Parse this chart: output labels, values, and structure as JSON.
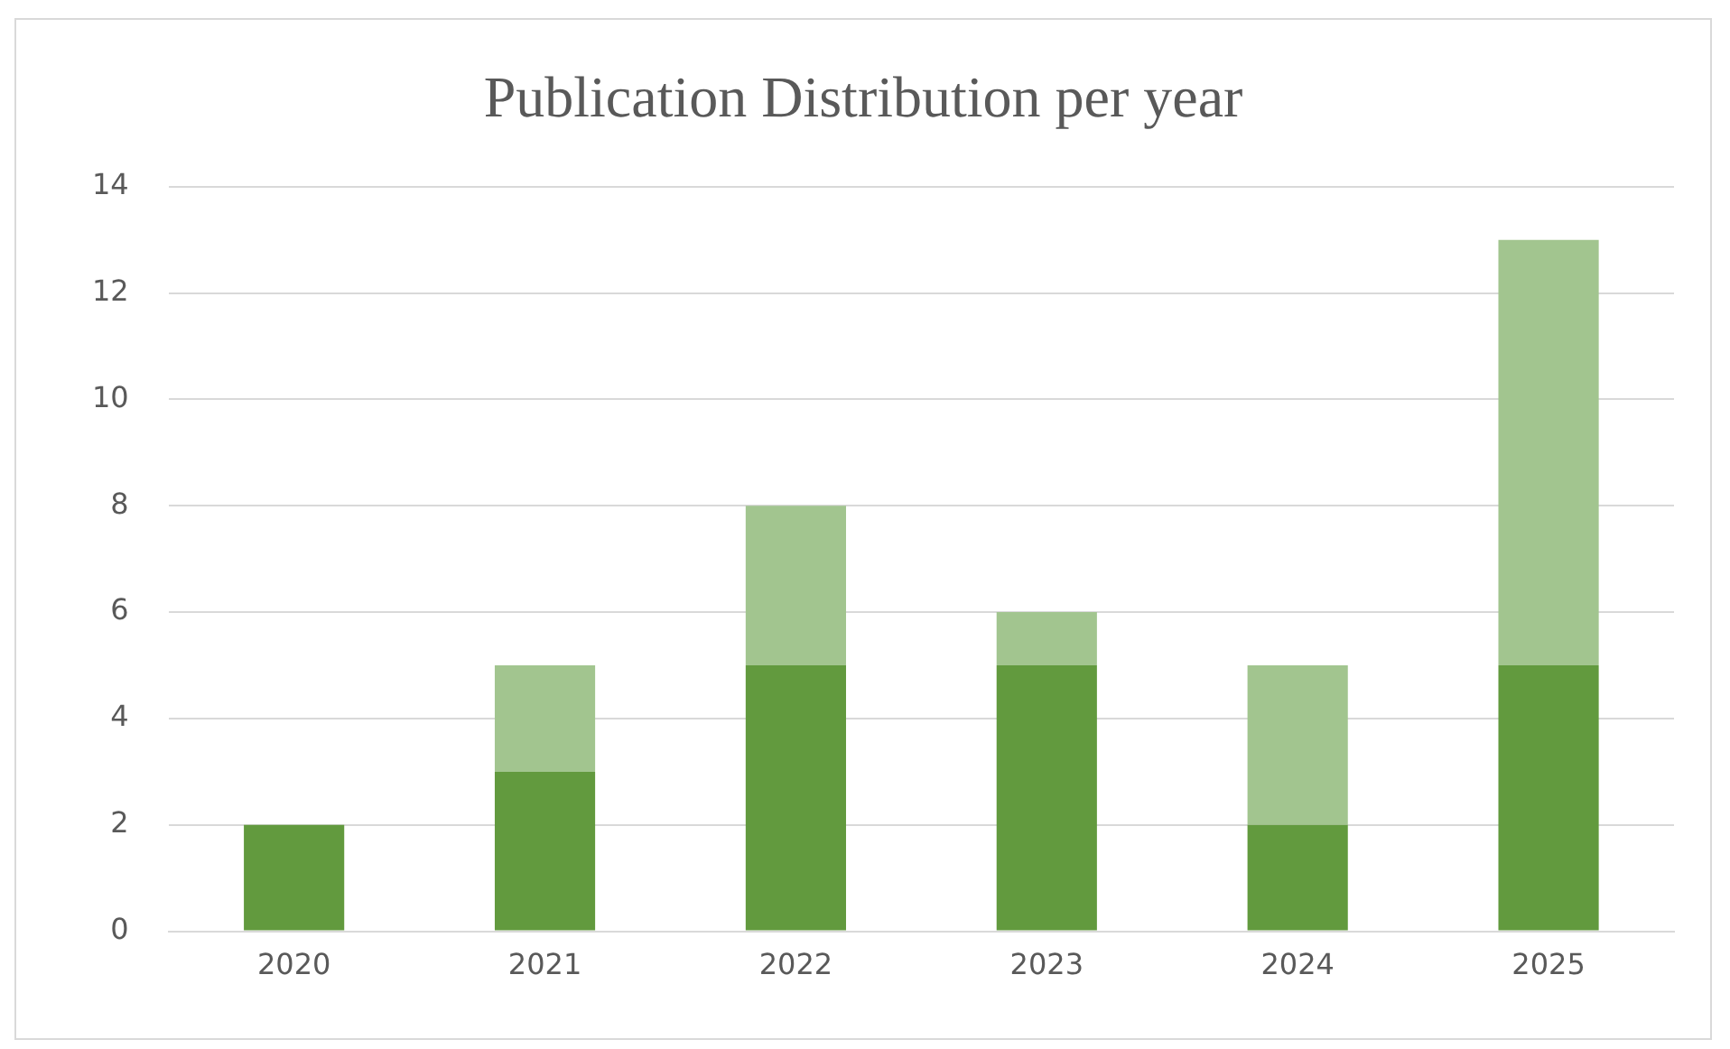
{
  "chart_data": {
    "type": "bar",
    "title": "Publication Distribution per year",
    "categories": [
      "2020",
      "2021",
      "2022",
      "2023",
      "2024",
      "2025"
    ],
    "stacked": true,
    "series": [
      {
        "color": "#629a3e",
        "values": [
          2,
          3,
          5,
          5,
          2,
          5
        ]
      },
      {
        "color": "#a2c58f",
        "values": [
          0,
          2,
          3,
          1,
          3,
          8
        ]
      }
    ],
    "ylim": [
      0,
      14
    ],
    "yticks": [
      0,
      2,
      4,
      6,
      8,
      10,
      12,
      14
    ],
    "grid": "y"
  }
}
